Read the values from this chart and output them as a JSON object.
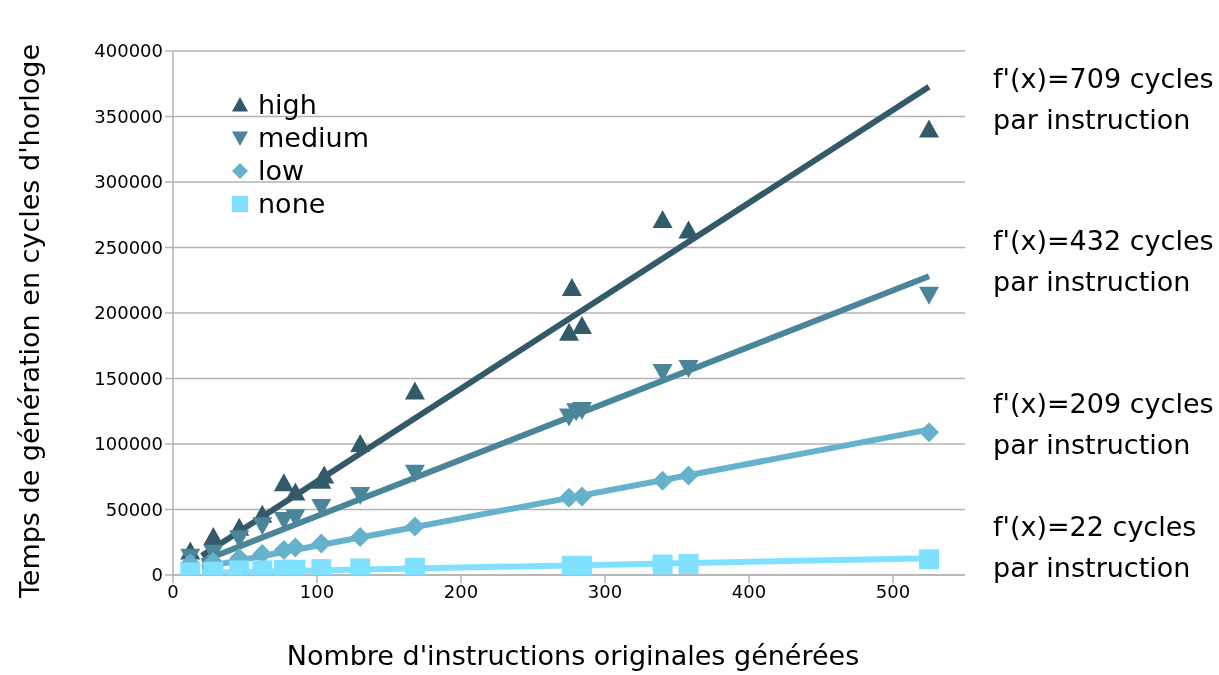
{
  "chart_data": {
    "type": "scatter",
    "xlabel": "Nombre d'instructions originales générées",
    "ylabel": "Temps de génération en cycles d'horloge",
    "xlim": [
      0,
      550
    ],
    "xticks": [
      0,
      100,
      200,
      300,
      400,
      500
    ],
    "ylim": [
      0,
      400000
    ],
    "yticks": [
      0,
      50000,
      100000,
      150000,
      200000,
      250000,
      300000,
      350000,
      400000
    ],
    "grid": "y",
    "legend": "top left",
    "annotations": [
      "f'(x)=709 cycles\npar instruction",
      "f'(x)=432 cycles\npar instruction",
      "f'(x)=209 cycles\npar instruction",
      "f'(x)=22 cycles\npar instruction"
    ],
    "series": [
      {
        "name": "high",
        "color": "#335a68",
        "marker": "triangle",
        "x": [
          12,
          28,
          46,
          62,
          77,
          85,
          103,
          105,
          130,
          168,
          275,
          277,
          284,
          340,
          358,
          525
        ],
        "values": [
          18000,
          29000,
          36000,
          46000,
          70000,
          63000,
          72000,
          76000,
          100000,
          140000,
          185000,
          219000,
          190000,
          271000,
          263000,
          340000
        ]
      },
      {
        "name": "medium",
        "color": "#4a8599",
        "marker": "triangle-down",
        "x": [
          12,
          28,
          46,
          62,
          77,
          85,
          103,
          130,
          168,
          275,
          280,
          284,
          340,
          358,
          525
        ],
        "values": [
          14000,
          17000,
          28000,
          38000,
          42000,
          44000,
          52000,
          61000,
          78000,
          121000,
          125000,
          126000,
          155000,
          158000,
          214000
        ]
      },
      {
        "name": "low",
        "color": "#66b2cc",
        "marker": "diamond",
        "x": [
          12,
          28,
          46,
          62,
          77,
          85,
          103,
          130,
          168,
          275,
          284,
          340,
          358,
          525
        ],
        "values": [
          9000,
          10000,
          13000,
          16000,
          19000,
          21000,
          24000,
          29000,
          37000,
          59000,
          60000,
          72000,
          76000,
          109000
        ]
      },
      {
        "name": "none",
        "color": "#80e0ff",
        "marker": "square",
        "x": [
          12,
          28,
          46,
          62,
          77,
          85,
          103,
          130,
          168,
          277,
          284,
          340,
          358,
          525
        ],
        "values": [
          2000,
          2500,
          3500,
          3500,
          4000,
          4000,
          4500,
          5000,
          5500,
          7000,
          7000,
          8000,
          8500,
          12000
        ]
      },
      {
        "type": "line",
        "color": "#335a68",
        "marker": "none",
        "x": [
          20,
          525
        ],
        "values": [
          14700,
          372700
        ]
      },
      {
        "type": "line",
        "color": "#4a8599",
        "marker": "none",
        "x": [
          20,
          525
        ],
        "values": [
          10500,
          228000
        ]
      },
      {
        "type": "line",
        "color": "#66b2cc",
        "marker": "none",
        "x": [
          20,
          525
        ],
        "values": [
          5700,
          111000
        ]
      },
      {
        "type": "line",
        "color": "#80e0ff",
        "marker": "none",
        "x": [
          20,
          525
        ],
        "values": [
          1700,
          12800
        ]
      }
    ]
  }
}
